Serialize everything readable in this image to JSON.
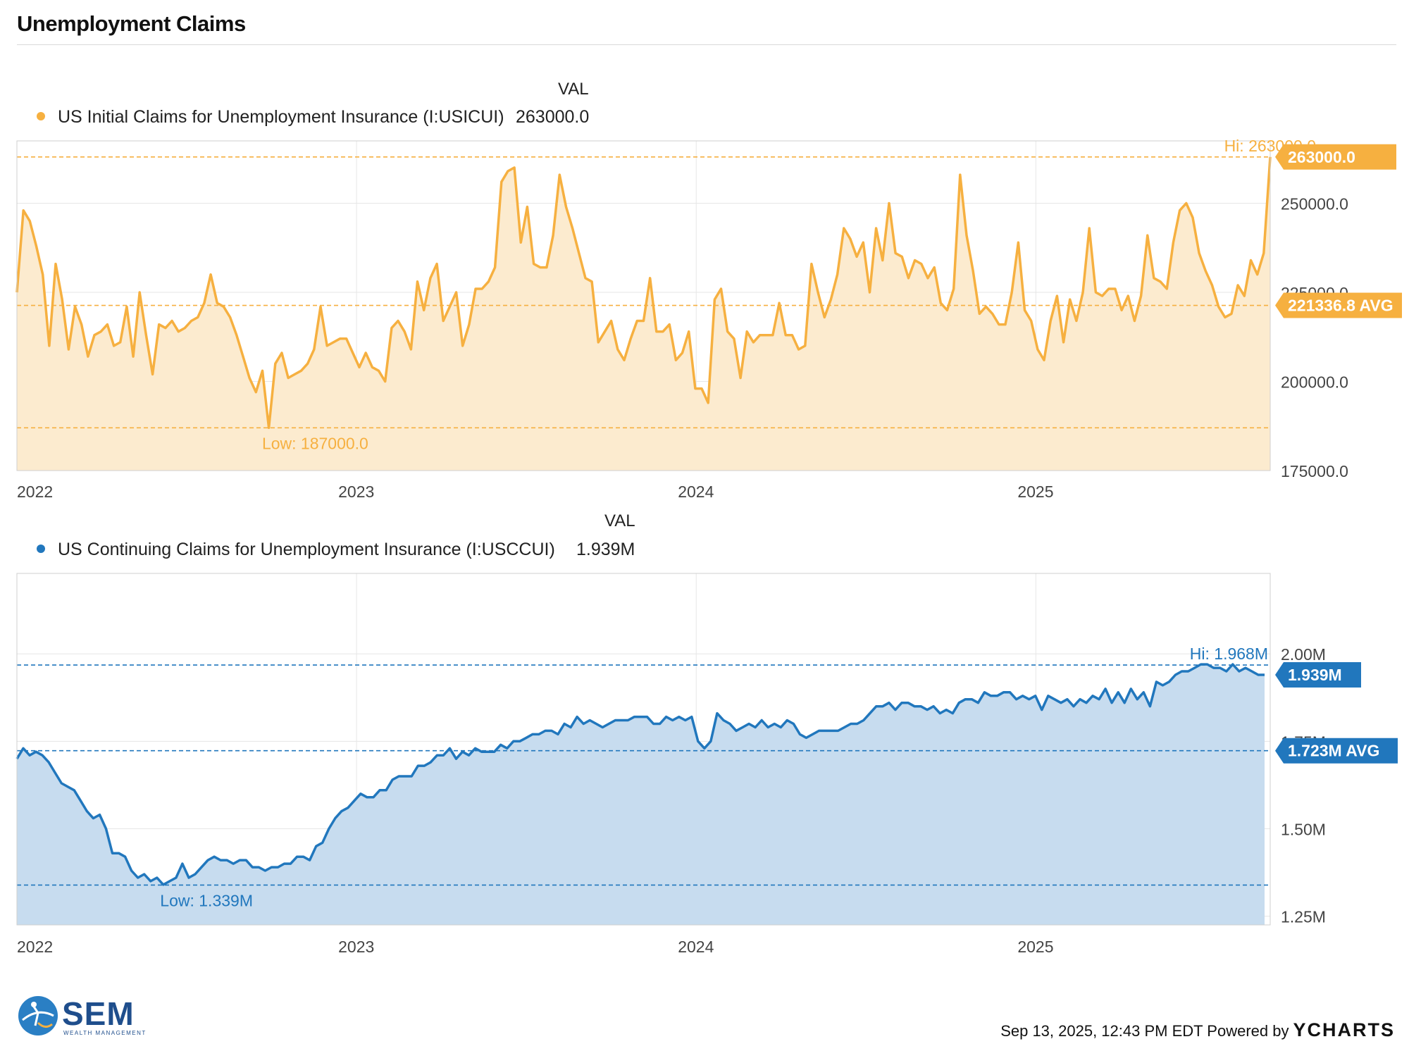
{
  "title": "Unemployment Claims",
  "footer": {
    "timestamp": "Sep 13, 2025, 12:43 PM EDT Powered by",
    "brand": "YCHARTS"
  },
  "logo": {
    "name": "SEM",
    "subtitle": "WEALTH MANAGEMENT"
  },
  "colors": {
    "initial": "#f6b040",
    "continuing": "#2177bd"
  },
  "chart_data": [
    {
      "type": "area",
      "val_header": "VAL",
      "series_name": "US Initial Claims for Unemployment Insurance (I:USICUI)",
      "legend_value": "263000.0",
      "color": "#f6b040",
      "fill": "#fcebcf",
      "x_start": 2022.0,
      "x_end": 2025.69,
      "x_ticks": [
        "2022",
        "2023",
        "2024",
        "2025"
      ],
      "y_ticks": [
        "250000.0",
        "225000.0",
        "200000.0",
        "175000.0"
      ],
      "y_tick_values": [
        250000,
        225000,
        200000,
        175000
      ],
      "ylim": [
        175000,
        267500
      ],
      "hi_label": "Hi: 263000.0",
      "hi": 263000,
      "low_label": "Low: 187000.0",
      "low": 187000,
      "low_x": 2022.73,
      "current_tag": "263000.0",
      "avg_tag": "221336.8 AVG",
      "avg": 221336.8,
      "values": [
        225000,
        248000,
        245000,
        238000,
        230000,
        210000,
        233000,
        223000,
        209000,
        221000,
        216000,
        207000,
        213000,
        214000,
        216000,
        210000,
        211000,
        221000,
        207000,
        225000,
        213000,
        202000,
        216000,
        215000,
        217000,
        214000,
        215000,
        217000,
        218000,
        222000,
        230000,
        222000,
        221000,
        218000,
        213000,
        207000,
        201000,
        197000,
        203000,
        187000,
        205000,
        208000,
        201000,
        202000,
        203000,
        205000,
        209000,
        221000,
        210000,
        211000,
        212000,
        212000,
        208000,
        204000,
        208000,
        204000,
        203000,
        200000,
        215000,
        217000,
        214000,
        209000,
        228000,
        220000,
        229000,
        233000,
        217000,
        221000,
        225000,
        210000,
        216000,
        226000,
        226000,
        228000,
        232000,
        256000,
        259000,
        260000,
        239000,
        249000,
        233000,
        232000,
        232000,
        241000,
        258000,
        249000,
        243000,
        236000,
        229000,
        228000,
        211000,
        214000,
        217000,
        209000,
        206000,
        212000,
        217000,
        217000,
        229000,
        214000,
        214000,
        216000,
        206000,
        208000,
        214000,
        198000,
        198000,
        194000,
        223000,
        226000,
        214000,
        212000,
        201000,
        214000,
        211000,
        213000,
        213000,
        213000,
        222000,
        213000,
        213000,
        209000,
        210000,
        233000,
        225000,
        218000,
        223000,
        230000,
        243000,
        240000,
        235000,
        239000,
        225000,
        243000,
        234000,
        250000,
        236000,
        235000,
        229000,
        234000,
        233000,
        229000,
        232000,
        222000,
        220000,
        226000,
        258000,
        241000,
        231000,
        219000,
        221000,
        219000,
        216000,
        216000,
        225000,
        239000,
        220000,
        217000,
        209000,
        206000,
        217000,
        224000,
        211000,
        223000,
        217000,
        225000,
        243000,
        225000,
        224000,
        226000,
        226000,
        220000,
        224000,
        217000,
        224000,
        241000,
        229000,
        228000,
        226000,
        239000,
        248000,
        250000,
        246000,
        236000,
        231000,
        227000,
        221000,
        218000,
        219000,
        227000,
        224000,
        234000,
        230000,
        236000,
        263000
      ]
    },
    {
      "type": "area",
      "val_header": "VAL",
      "series_name": "US Continuing Claims for Unemployment Insurance (I:USCCUI)",
      "legend_value": "1.939M",
      "color": "#2177bd",
      "fill": "#c7dcef",
      "x_start": 2022.0,
      "x_end": 2025.67,
      "x_ticks": [
        "2022",
        "2023",
        "2024",
        "2025"
      ],
      "y_ticks": [
        "2.00M",
        "1.75M",
        "1.50M",
        "1.25M"
      ],
      "y_tick_values": [
        2.0,
        1.75,
        1.5,
        1.25
      ],
      "ylim": [
        1.225,
        2.23
      ],
      "hi_label": "Hi: 1.968M",
      "hi": 1.968,
      "low_label": "Low: 1.339M",
      "low": 1.339,
      "low_x": 2022.43,
      "current_tag": "1.939M",
      "avg_tag": "1.723M AVG",
      "avg": 1.723,
      "values": [
        1.7,
        1.73,
        1.71,
        1.72,
        1.71,
        1.69,
        1.66,
        1.63,
        1.62,
        1.61,
        1.58,
        1.55,
        1.53,
        1.54,
        1.5,
        1.43,
        1.43,
        1.42,
        1.38,
        1.36,
        1.37,
        1.35,
        1.36,
        1.34,
        1.35,
        1.36,
        1.4,
        1.36,
        1.37,
        1.39,
        1.41,
        1.42,
        1.41,
        1.41,
        1.4,
        1.41,
        1.41,
        1.39,
        1.39,
        1.38,
        1.39,
        1.39,
        1.4,
        1.4,
        1.42,
        1.42,
        1.41,
        1.45,
        1.46,
        1.5,
        1.53,
        1.55,
        1.56,
        1.58,
        1.6,
        1.59,
        1.59,
        1.61,
        1.61,
        1.64,
        1.65,
        1.65,
        1.65,
        1.68,
        1.68,
        1.69,
        1.71,
        1.71,
        1.73,
        1.7,
        1.72,
        1.71,
        1.73,
        1.72,
        1.72,
        1.72,
        1.74,
        1.73,
        1.75,
        1.75,
        1.76,
        1.77,
        1.77,
        1.78,
        1.78,
        1.77,
        1.8,
        1.79,
        1.82,
        1.8,
        1.81,
        1.8,
        1.79,
        1.8,
        1.81,
        1.81,
        1.81,
        1.82,
        1.82,
        1.82,
        1.8,
        1.8,
        1.82,
        1.81,
        1.82,
        1.81,
        1.82,
        1.75,
        1.73,
        1.75,
        1.83,
        1.81,
        1.8,
        1.78,
        1.79,
        1.8,
        1.79,
        1.81,
        1.79,
        1.8,
        1.79,
        1.81,
        1.8,
        1.77,
        1.76,
        1.77,
        1.78,
        1.78,
        1.78,
        1.78,
        1.79,
        1.8,
        1.8,
        1.81,
        1.83,
        1.85,
        1.85,
        1.86,
        1.84,
        1.86,
        1.86,
        1.85,
        1.85,
        1.84,
        1.85,
        1.83,
        1.84,
        1.83,
        1.86,
        1.87,
        1.87,
        1.86,
        1.89,
        1.88,
        1.88,
        1.89,
        1.89,
        1.87,
        1.88,
        1.87,
        1.88,
        1.84,
        1.88,
        1.87,
        1.86,
        1.87,
        1.85,
        1.87,
        1.86,
        1.88,
        1.87,
        1.9,
        1.86,
        1.89,
        1.86,
        1.9,
        1.87,
        1.89,
        1.85,
        1.92,
        1.91,
        1.92,
        1.94,
        1.95,
        1.95,
        1.96,
        1.97,
        1.97,
        1.96,
        1.96,
        1.95,
        1.97,
        1.95,
        1.96,
        1.95,
        1.94,
        1.94
      ]
    }
  ]
}
